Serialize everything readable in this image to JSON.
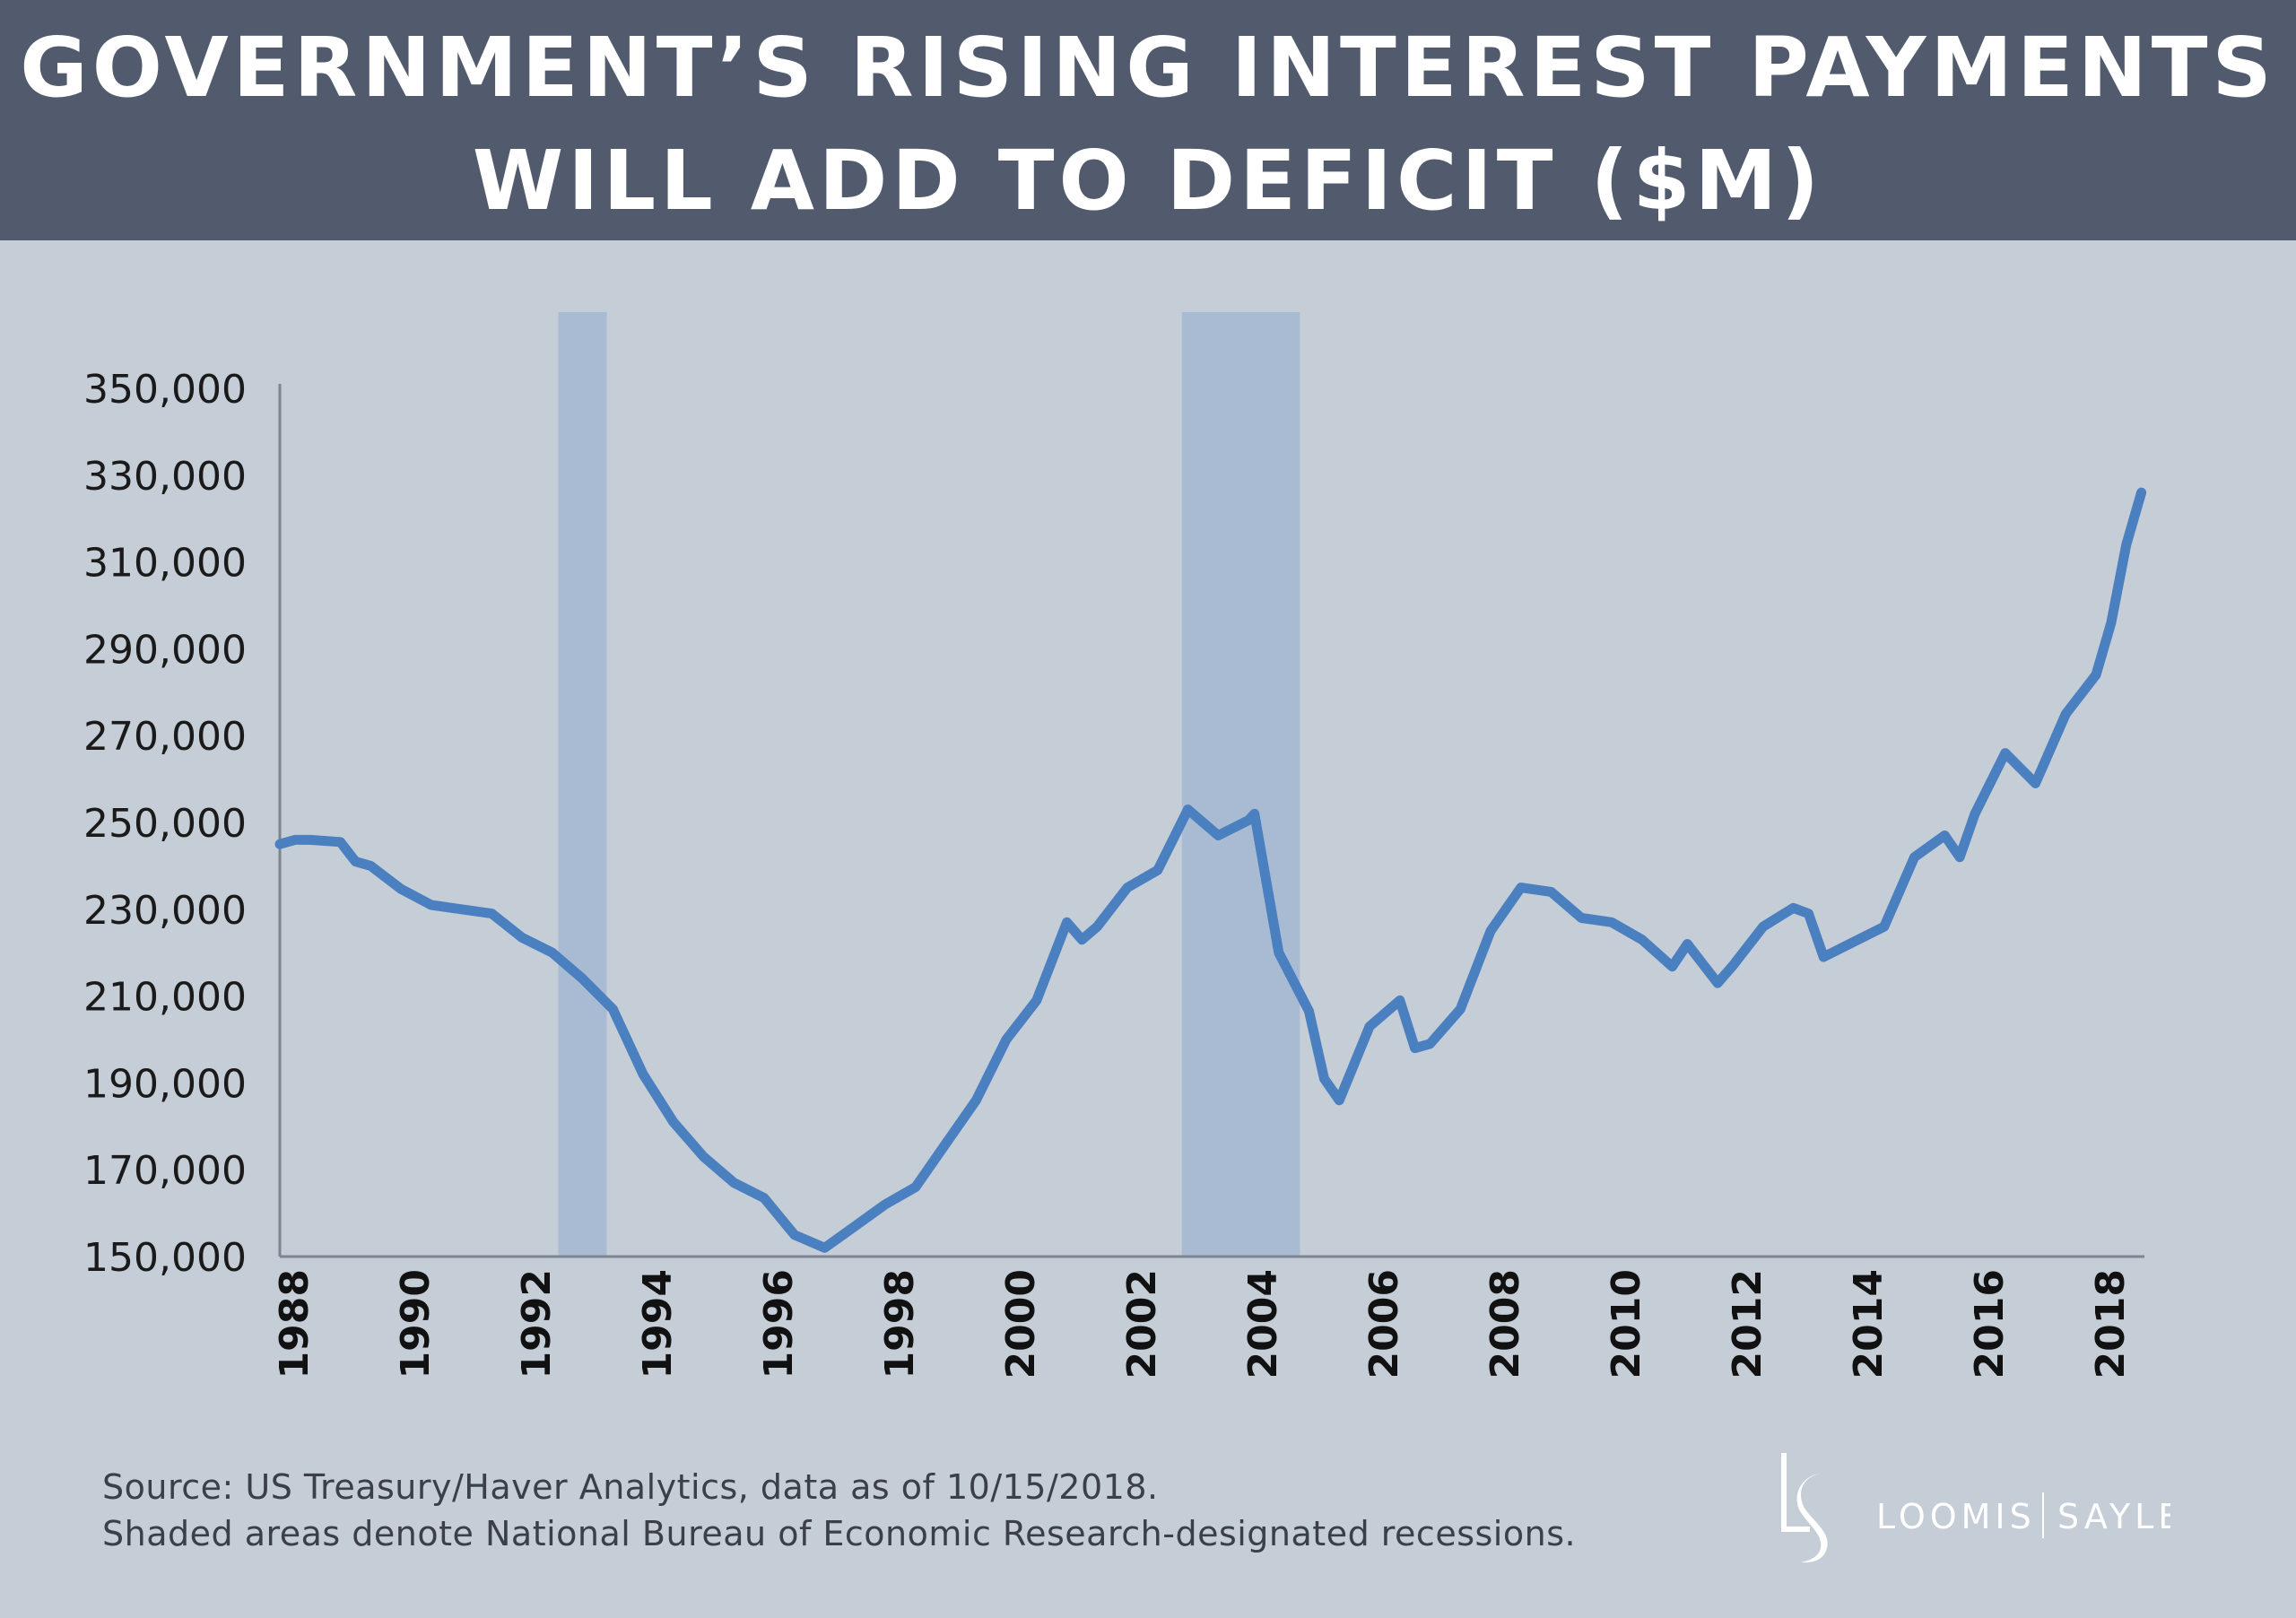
{
  "header": {
    "title_line1": "GOVERNMENT’S RISING INTEREST PAYMENTS",
    "title_line2": "WILL ADD TO DEFICIT ($M)"
  },
  "footer": {
    "source": "Source: US Treasury/Haver Analytics, data as of 10/15/2018.",
    "note": "Shaded areas denote National Bureau of Economic Research-designated recessions.",
    "logo_text_left": "LOOMIS",
    "logo_text_right": "SAYLES",
    "logo_monogram": "LS"
  },
  "colors": {
    "header": "#525b6e",
    "background": "#c5cdd7",
    "line": "#4a7fc0",
    "recession": "#a8bbd2"
  },
  "chart_data": {
    "type": "line",
    "title": "GOVERNMENT’S RISING INTEREST PAYMENTS WILL ADD TO DEFICIT ($M)",
    "xlim": [
      1988,
      2018.75
    ],
    "ylim": [
      150000,
      350000
    ],
    "grid": false,
    "y_ticks": [
      "350,000",
      "330,000",
      "310,000",
      "290,000",
      "270,000",
      "250,000",
      "230,000",
      "210,000",
      "190,000",
      "170,000",
      "150,000"
    ],
    "y_tick_values": [
      350000,
      330000,
      310000,
      290000,
      270000,
      250000,
      230000,
      210000,
      190000,
      170000,
      150000
    ],
    "x_ticks": [
      "1988",
      "1990",
      "1992",
      "1994",
      "1996",
      "1998",
      "2000",
      "2002",
      "2004",
      "2006",
      "2008",
      "2010",
      "2012",
      "2014",
      "2016",
      "2018"
    ],
    "recessions": [
      [
        1992.6,
        1993.4
      ],
      [
        2002.9,
        2004.85
      ]
    ],
    "x": [
      1988,
      1988.25,
      1988.5,
      1989,
      1989.25,
      1989.5,
      1990,
      1990.5,
      1991,
      1991.5,
      1992,
      1992.5,
      1993,
      1993.5,
      1994,
      1994.5,
      1995,
      1995.5,
      1996,
      1996.5,
      1997,
      1997.5,
      1998,
      1998.5,
      1999,
      1999.5,
      2000,
      2000.5,
      2001,
      2001.25,
      2001.5,
      2002,
      2002.5,
      2003,
      2003.5,
      2004,
      2004.1,
      2004.5,
      2005,
      2005.25,
      2005.5,
      2006,
      2006.5,
      2006.75,
      2007,
      2007.5,
      2008,
      2008.5,
      2009,
      2009.5,
      2010,
      2010.5,
      2011,
      2011.25,
      2011.75,
      2012,
      2012.5,
      2013,
      2013.25,
      2013.5,
      2014,
      2014.5,
      2015,
      2015.5,
      2015.75,
      2016,
      2016.5,
      2017,
      2017.5,
      2018,
      2018.25,
      2018.5,
      2018.75
    ],
    "values": [
      245000,
      246000,
      246000,
      245500,
      241000,
      240000,
      234700,
      231000,
      230000,
      229000,
      223500,
      220000,
      214000,
      207000,
      192000,
      181000,
      173000,
      167000,
      163500,
      155000,
      152000,
      157000,
      162000,
      166000,
      176000,
      186000,
      200000,
      209000,
      227000,
      223000,
      226000,
      235000,
      239000,
      253000,
      247000,
      250500,
      252000,
      220000,
      206500,
      191000,
      186000,
      203000,
      209000,
      198000,
      199000,
      207000,
      225000,
      235000,
      234000,
      228000,
      227000,
      223000,
      216800,
      222000,
      213000,
      217000,
      226000,
      230300,
      229000,
      219000,
      222500,
      226000,
      242000,
      247000,
      242000,
      252000,
      266000,
      259000,
      275000,
      284000,
      296000,
      314000,
      326000
    ]
  }
}
